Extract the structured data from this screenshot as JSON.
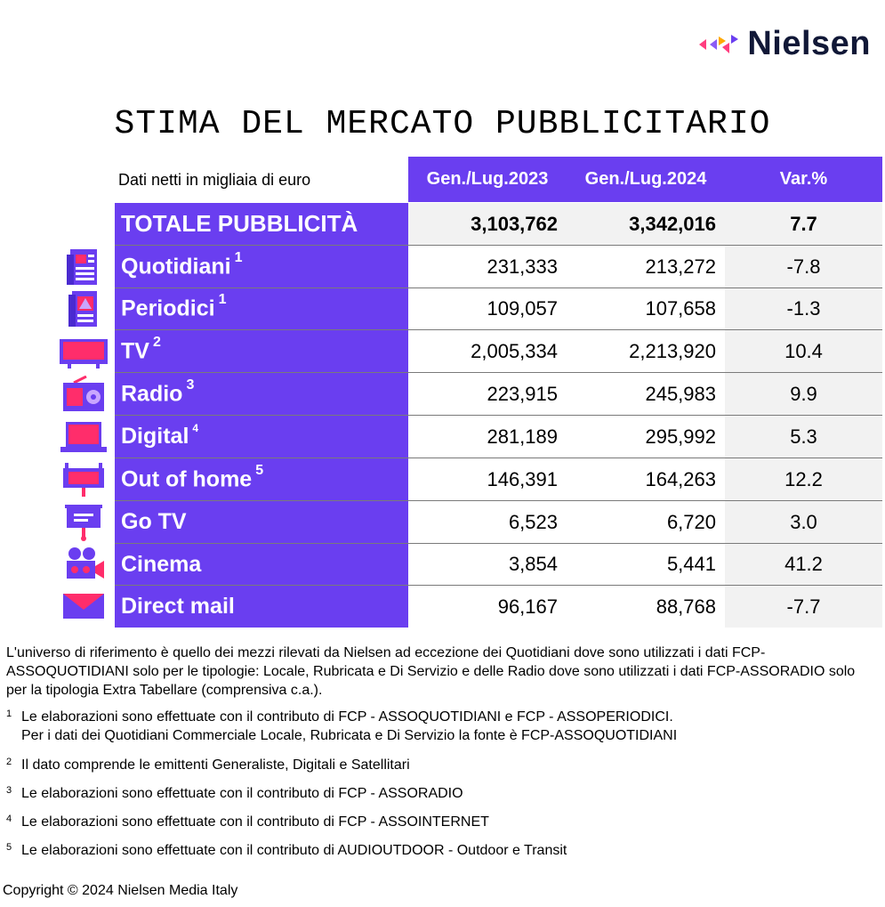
{
  "brand": {
    "name": "Nielsen",
    "colors": {
      "purple": "#6a3ef0",
      "pink": "#ff3d7f",
      "orange": "#ffa800",
      "violet": "#8b5cf6",
      "dark": "#111837"
    }
  },
  "title": "STIMA DEL MERCATO PUBBLICITARIO",
  "unit_label": "Dati netti in migliaia di euro",
  "columns": [
    "Gen./Lug.2023",
    "Gen./Lug.2024",
    "Var.%"
  ],
  "rows": [
    {
      "label": "TOTALE PUBBLICITÀ",
      "note": "",
      "v2023": "3,103,762",
      "v2024": "3,342,016",
      "var": "7.7",
      "icon": ""
    },
    {
      "label": "Quotidiani",
      "note": "1",
      "v2023": "231,333",
      "v2024": "213,272",
      "var": "-7.8",
      "icon": "newspaper-icon"
    },
    {
      "label": "Periodici",
      "note": "1",
      "v2023": "109,057",
      "v2024": "107,658",
      "var": "-1.3",
      "icon": "magazine-icon"
    },
    {
      "label": "TV",
      "note": "2",
      "v2023": "2,005,334",
      "v2024": "2,213,920",
      "var": "10.4",
      "icon": "tv-icon"
    },
    {
      "label": "Radio",
      "note": "3",
      "v2023": "223,915",
      "v2024": "245,983",
      "var": "9.9",
      "icon": "radio-icon"
    },
    {
      "label": "Digital",
      "note": "4",
      "v2023": "281,189",
      "v2024": "295,992",
      "var": "5.3",
      "icon": "laptop-icon"
    },
    {
      "label": "Out of home",
      "note": "5",
      "v2023": "146,391",
      "v2024": "164,263",
      "var": "12.2",
      "icon": "billboard-icon"
    },
    {
      "label": "Go TV",
      "note": "",
      "v2023": "6,523",
      "v2024": "6,720",
      "var": "3.0",
      "icon": "screen-stand-icon"
    },
    {
      "label": "Cinema",
      "note": "",
      "v2023": "3,854",
      "v2024": "5,441",
      "var": "41.2",
      "icon": "movie-camera-icon"
    },
    {
      "label": "Direct mail",
      "note": "",
      "v2023": "96,167",
      "v2024": "88,768",
      "var": "-7.7",
      "icon": "envelope-icon"
    }
  ],
  "notes": {
    "intro": "L'universo di riferimento è quello dei mezzi rilevati da Nielsen ad eccezione dei Quotidiani dove sono utilizzati i dati FCP-ASSOQUOTIDIANI solo per le tipologie: Locale, Rubricata e Di Servizio e delle Radio dove sono utilizzati i dati FCP-ASSORADIO solo per la tipologia Extra Tabellare (comprensiva c.a.).",
    "footnotes": [
      {
        "num": "1",
        "lines": [
          "Le elaborazioni sono effettuate con il contributo di FCP - ASSOQUOTIDIANI e FCP - ASSOPERIODICI.",
          "Per i dati dei Quotidiani Commerciale Locale, Rubricata e Di Servizio la fonte è  FCP-ASSOQUOTIDIANI"
        ]
      },
      {
        "num": "2",
        "lines": [
          "Il dato comprende le emittenti Generaliste, Digitali e Satellitari"
        ]
      },
      {
        "num": "3",
        "lines": [
          "Le elaborazioni sono effettuate con il contributo di FCP - ASSORADIO"
        ]
      },
      {
        "num": "4",
        "lines": [
          "Le elaborazioni sono effettuate con il contributo di FCP - ASSOINTERNET"
        ]
      },
      {
        "num": "5",
        "lines": [
          "Le elaborazioni sono effettuate con il contributo di AUDIOUTDOOR - Outdoor e Transit"
        ]
      }
    ]
  },
  "copyright": "Copyright © 2024 Nielsen Media Italy"
}
